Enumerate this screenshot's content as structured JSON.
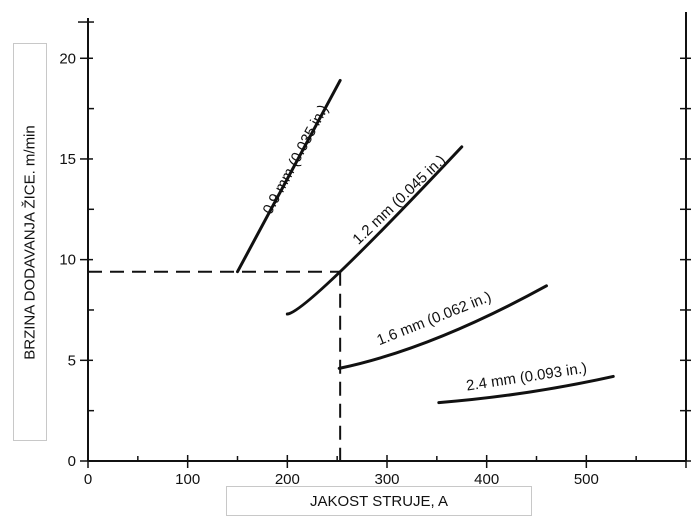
{
  "chart_data": {
    "type": "line",
    "xlabel": "JAKOST STRUJE, A",
    "ylabel": "BRZINA DODAVANJA ŽICE. m/min",
    "xlim": [
      0,
      600
    ],
    "ylim": [
      0,
      22
    ],
    "xticks": [
      "0",
      "100",
      "200",
      "300",
      "400",
      "500"
    ],
    "yticks": [
      "0",
      "5",
      "10",
      "15",
      "20"
    ],
    "series": [
      {
        "name": "0.9 mm (0.035 in.)",
        "x": [
          150,
          253
        ],
        "y": [
          9.4,
          18.9
        ]
      },
      {
        "name": "1.2 mm (0.045 in.)",
        "x": [
          200,
          253,
          375
        ],
        "y": [
          7.3,
          9.4,
          15.6
        ]
      },
      {
        "name": "1.6 mm (0.062 in.)",
        "x": [
          252,
          350,
          460
        ],
        "y": [
          4.6,
          6.1,
          8.7
        ]
      },
      {
        "name": "2.4 mm (0.093 in.)",
        "x": [
          352,
          440,
          527
        ],
        "y": [
          2.9,
          3.4,
          4.2
        ]
      }
    ],
    "reference_point": {
      "x": 253,
      "y": 9.4
    },
    "grid": false
  }
}
